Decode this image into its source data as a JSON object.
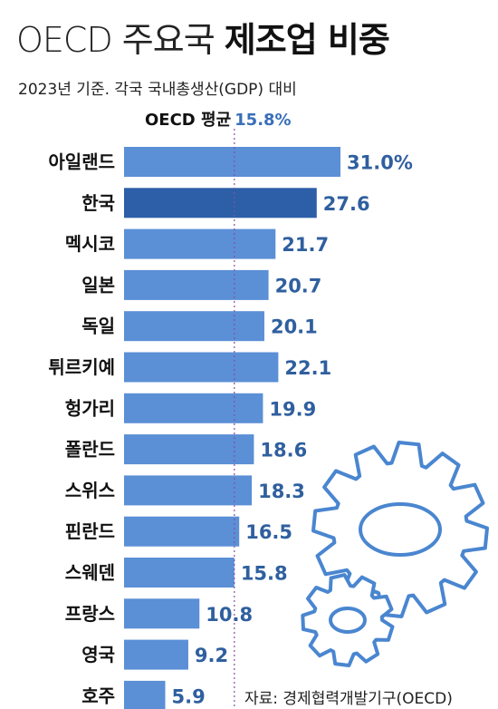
{
  "title_light": "OECD 주요국",
  "title_bold": "제조업 비중",
  "subtitle": "2023년 기준. 각국 국내총생산(GDP) 대비",
  "average": {
    "label": "OECD 평균",
    "value": 15.8,
    "value_text": "15.8%"
  },
  "source": "자료: 경제협력개발기구(OECD)",
  "colors": {
    "bar": "#5b8fd6",
    "highlight": "#2c5fa8",
    "label": "#2f5f9e",
    "gear": "#4a86d0",
    "avg_line": "#8a4f9e"
  },
  "icons": [
    "gear-large-icon",
    "gear-small-icon"
  ],
  "chart_data": {
    "type": "bar",
    "orientation": "horizontal",
    "categories": [
      "아일랜드",
      "한국",
      "멕시코",
      "일본",
      "독일",
      "튀르키예",
      "헝가리",
      "폴란드",
      "스위스",
      "핀란드",
      "스웨덴",
      "프랑스",
      "영국",
      "호주"
    ],
    "values": [
      31.0,
      27.6,
      21.7,
      20.7,
      20.1,
      22.1,
      19.9,
      18.6,
      18.3,
      16.5,
      15.8,
      10.8,
      9.2,
      5.9
    ],
    "value_labels": [
      "31.0%",
      "27.6",
      "21.7",
      "20.7",
      "20.1",
      "22.1",
      "19.9",
      "18.6",
      "18.3",
      "16.5",
      "15.8",
      "10.8",
      "9.2",
      "5.9"
    ],
    "highlight": "한국",
    "xlim": [
      0,
      31.0
    ],
    "reference_line": 15.8
  }
}
